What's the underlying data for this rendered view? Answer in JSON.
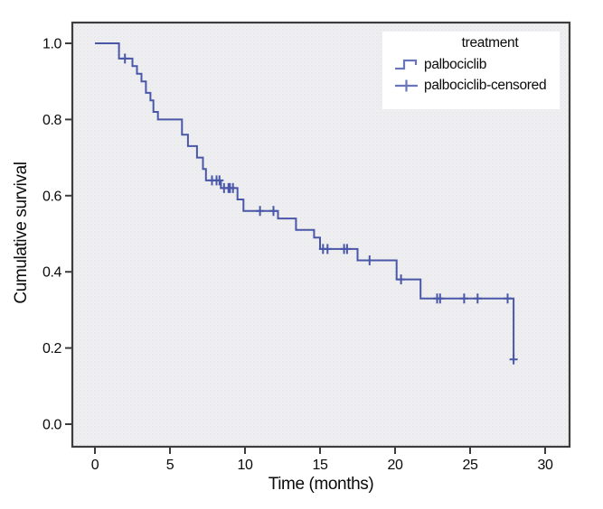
{
  "figure": {
    "y_axis_label": "Cumulative survival",
    "x_axis_label": "Time (months)"
  },
  "legend": {
    "title": "treatment",
    "items": [
      {
        "label": "palbociclib",
        "glyph": "step-line-icon"
      },
      {
        "label": "palbociclib-censored",
        "glyph": "censor-cross-icon"
      }
    ]
  },
  "colors": {
    "curve": "#4a57a8",
    "frame": "#3d3d3d",
    "plot_bg_base": "#f0f0f2",
    "plot_bg_dot": "#dcdde1"
  },
  "chart_data": {
    "type": "line",
    "subtype": "kaplan-meier-step",
    "title": "",
    "xlabel": "Time (months)",
    "ylabel": "Cumulative survival",
    "xlim": [
      -1.5,
      31.6
    ],
    "ylim": [
      -0.06,
      1.05
    ],
    "x_ticks": [
      0,
      5,
      10,
      15,
      20,
      25,
      30
    ],
    "y_ticks": [
      0.0,
      0.2,
      0.4,
      0.6,
      0.8,
      1.0
    ],
    "y_tick_labels": [
      "0.0",
      "0.2",
      "0.4",
      "0.6",
      "0.8",
      "1.0"
    ],
    "grid": false,
    "legend_position": "upper-right",
    "series": [
      {
        "name": "palbociclib",
        "start": {
          "t": 0,
          "s": 1.0
        },
        "steps": [
          {
            "t": 1.6,
            "s": 0.96
          },
          {
            "t": 2.5,
            "s": 0.94
          },
          {
            "t": 2.8,
            "s": 0.92
          },
          {
            "t": 3.1,
            "s": 0.9
          },
          {
            "t": 3.4,
            "s": 0.87
          },
          {
            "t": 3.7,
            "s": 0.85
          },
          {
            "t": 3.9,
            "s": 0.82
          },
          {
            "t": 4.2,
            "s": 0.8
          },
          {
            "t": 5.8,
            "s": 0.76
          },
          {
            "t": 6.2,
            "s": 0.73
          },
          {
            "t": 6.8,
            "s": 0.7
          },
          {
            "t": 7.2,
            "s": 0.67
          },
          {
            "t": 7.4,
            "s": 0.64
          },
          {
            "t": 8.4,
            "s": 0.62
          },
          {
            "t": 9.5,
            "s": 0.59
          },
          {
            "t": 9.9,
            "s": 0.56
          },
          {
            "t": 12.2,
            "s": 0.54
          },
          {
            "t": 13.4,
            "s": 0.51
          },
          {
            "t": 14.6,
            "s": 0.49
          },
          {
            "t": 15.0,
            "s": 0.46
          },
          {
            "t": 17.5,
            "s": 0.43
          },
          {
            "t": 20.1,
            "s": 0.38
          },
          {
            "t": 21.7,
            "s": 0.33
          },
          {
            "t": 27.9,
            "s": 0.17
          }
        ]
      }
    ],
    "censored": [
      {
        "t": 2.0,
        "s": 0.96
      },
      {
        "t": 7.8,
        "s": 0.64
      },
      {
        "t": 8.1,
        "s": 0.64
      },
      {
        "t": 8.3,
        "s": 0.64
      },
      {
        "t": 8.6,
        "s": 0.62
      },
      {
        "t": 8.9,
        "s": 0.62
      },
      {
        "t": 9.0,
        "s": 0.62
      },
      {
        "t": 9.2,
        "s": 0.62
      },
      {
        "t": 11.0,
        "s": 0.56
      },
      {
        "t": 11.9,
        "s": 0.56
      },
      {
        "t": 15.2,
        "s": 0.46
      },
      {
        "t": 15.5,
        "s": 0.46
      },
      {
        "t": 16.6,
        "s": 0.46
      },
      {
        "t": 16.8,
        "s": 0.46
      },
      {
        "t": 18.3,
        "s": 0.43
      },
      {
        "t": 20.4,
        "s": 0.38
      },
      {
        "t": 22.8,
        "s": 0.33
      },
      {
        "t": 23.0,
        "s": 0.33
      },
      {
        "t": 24.6,
        "s": 0.33
      },
      {
        "t": 25.5,
        "s": 0.33
      },
      {
        "t": 27.5,
        "s": 0.33
      },
      {
        "t": 27.9,
        "s": 0.17
      }
    ]
  }
}
